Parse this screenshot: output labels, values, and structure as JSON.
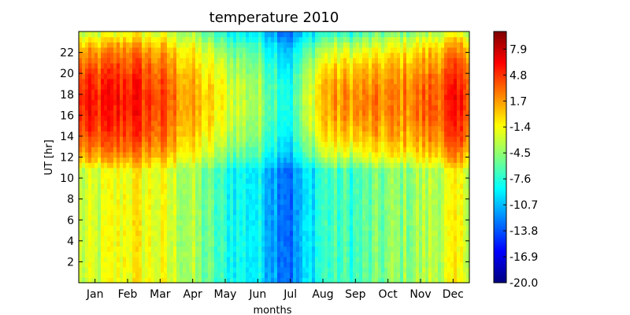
{
  "chart_data": {
    "type": "heatmap",
    "title": "temperature 2010",
    "xlabel": "months",
    "ylabel": "UT [hr]",
    "x_ticks": [
      "Jan",
      "Feb",
      "Mar",
      "Apr",
      "May",
      "Jun",
      "Jul",
      "Aug",
      "Sep",
      "Oct",
      "Nov",
      "Dec"
    ],
    "y_ticks": [
      2,
      4,
      6,
      8,
      10,
      12,
      14,
      16,
      18,
      20,
      22
    ],
    "ylim": [
      0,
      24
    ],
    "colorbar": {
      "min": -20.0,
      "max": 10.0,
      "ticks": [
        "-20.0",
        "-16.9",
        "-13.8",
        "-10.7",
        "-7.6",
        "-4.5",
        "-1.4",
        "1.7",
        "4.8",
        "7.9"
      ],
      "colormap": "jet"
    },
    "monthly_profile": {
      "months": [
        "Jan",
        "Feb",
        "Mar",
        "Apr",
        "May",
        "Jun",
        "Jul",
        "Aug",
        "Sep",
        "Oct",
        "Nov",
        "Dec"
      ],
      "night_temp": [
        -3,
        -1,
        -2,
        -4,
        -8,
        -9,
        -13,
        -7,
        -7,
        -5,
        -4,
        -2
      ],
      "day_temp": [
        5,
        6,
        4,
        1,
        -2,
        -4,
        -8,
        1,
        2,
        2,
        3,
        5
      ]
    },
    "grid": false
  }
}
